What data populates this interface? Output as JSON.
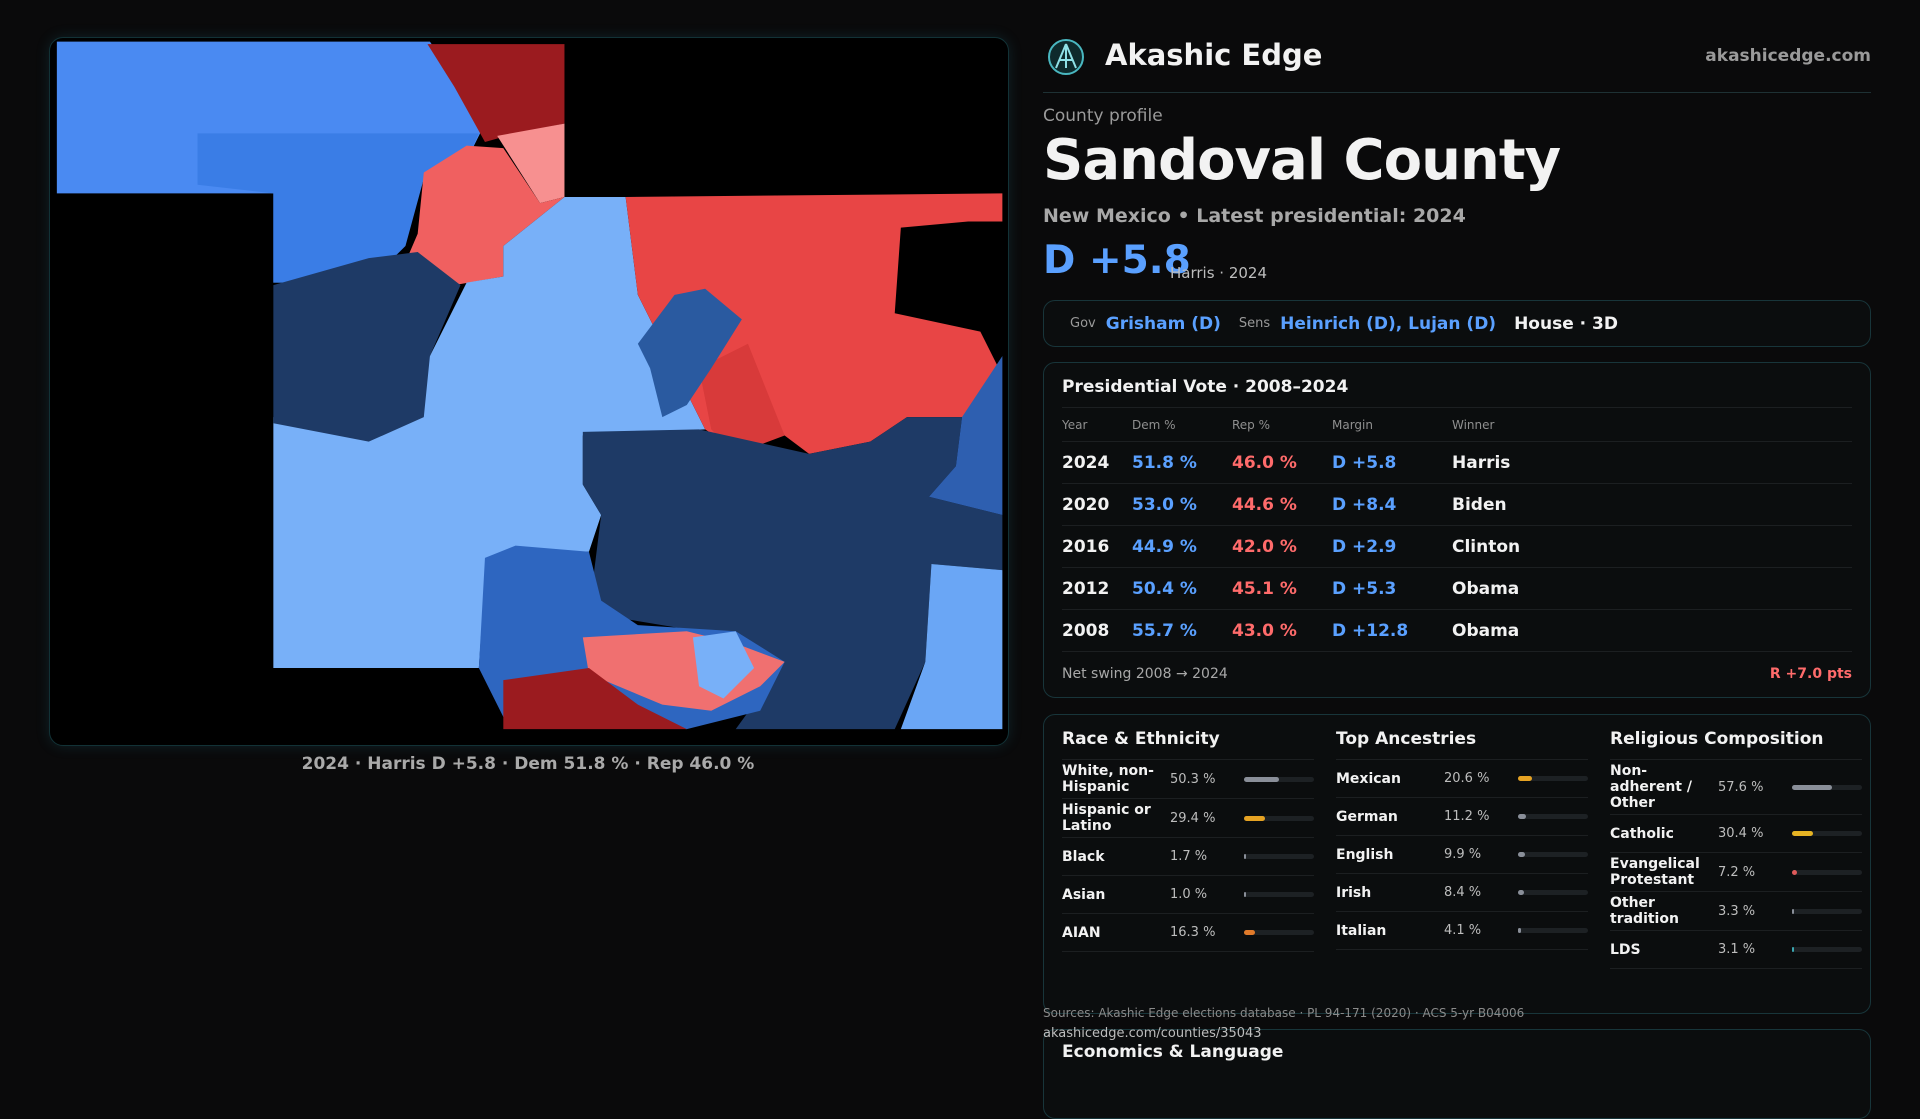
{
  "header": {
    "brand": "Akashic Edge",
    "site": "akashicedge.com"
  },
  "map": {
    "caption": "2024 · Harris D +5.8 · Dem 51.8 % · Rep 46.0 %"
  },
  "profile": {
    "kicker": "County profile",
    "title": "Sandoval County",
    "subtitle": "New Mexico • Latest presidential: 2024",
    "margin": "D +5.8",
    "margin_note": "Harris · 2024"
  },
  "officials": [
    {
      "label": "Gov",
      "value": "Grisham (D)"
    },
    {
      "label": "Sens",
      "value": "Heinrich (D), Lujan (D)"
    }
  ],
  "house": "House · 3D",
  "presidential": {
    "title": "Presidential Vote · 2008–2024",
    "columns": [
      "Year",
      "Dem %",
      "Rep %",
      "Margin",
      "Winner"
    ],
    "rows": [
      [
        "2024",
        "51.8 %",
        "46.0 %",
        "D +5.8",
        "Harris"
      ],
      [
        "2020",
        "53.0 %",
        "44.6 %",
        "D +8.4",
        "Biden"
      ],
      [
        "2016",
        "44.9 %",
        "42.0 %",
        "D +2.9",
        "Clinton"
      ],
      [
        "2012",
        "50.4 %",
        "45.1 %",
        "D +5.3",
        "Obama"
      ],
      [
        "2008",
        "55.7 %",
        "43.0 %",
        "D +12.8",
        "Obama"
      ]
    ],
    "swing_label": "Net swing 2008 → 2024",
    "swing_value": "R +7.0 pts"
  },
  "demographics": [
    {
      "title": "Race & Ethnicity",
      "rows": [
        {
          "label": "White, non-Hispanic",
          "pct": "50.3 %",
          "color": "#8a8f99"
        },
        {
          "label": "Hispanic or Latino",
          "pct": "29.4 %",
          "color": "#e6a323"
        },
        {
          "label": "Black",
          "pct": "1.7 %",
          "color": "#8a8f99"
        },
        {
          "label": "Asian",
          "pct": "1.0 %",
          "color": "#8a8f99"
        },
        {
          "label": "AIAN",
          "pct": "16.3 %",
          "color": "#e07a2a"
        }
      ]
    },
    {
      "title": "Top Ancestries",
      "rows": [
        {
          "label": "Mexican",
          "pct": "20.6 %",
          "color": "#e6a323"
        },
        {
          "label": "German",
          "pct": "11.2 %",
          "color": "#8a8f99"
        },
        {
          "label": "English",
          "pct": "9.9 %",
          "color": "#8a8f99"
        },
        {
          "label": "Irish",
          "pct": "8.4 %",
          "color": "#8a8f99"
        },
        {
          "label": "Italian",
          "pct": "4.1 %",
          "color": "#8a8f99"
        }
      ]
    },
    {
      "title": "Religious Composition",
      "rows": [
        {
          "label": "Non-adherent / Other",
          "pct": "57.6 %",
          "color": "#8a8f99"
        },
        {
          "label": "Catholic",
          "pct": "30.4 %",
          "color": "#e6b323"
        },
        {
          "label": "Evangelical Protestant",
          "pct": "7.2 %",
          "color": "#e05a5a"
        },
        {
          "label": "Other tradition",
          "pct": "3.3 %",
          "color": "#8a8f99"
        },
        {
          "label": "LDS",
          "pct": "3.1 %",
          "color": "#3aa6b0"
        }
      ]
    }
  ],
  "sources": "Sources: Akashic Edge elections database · PL 94-171 (2020) · ACS 5-yr B04006",
  "url": "akashicedge.com/counties/35043",
  "economics": {
    "title": "Economics & Language"
  }
}
